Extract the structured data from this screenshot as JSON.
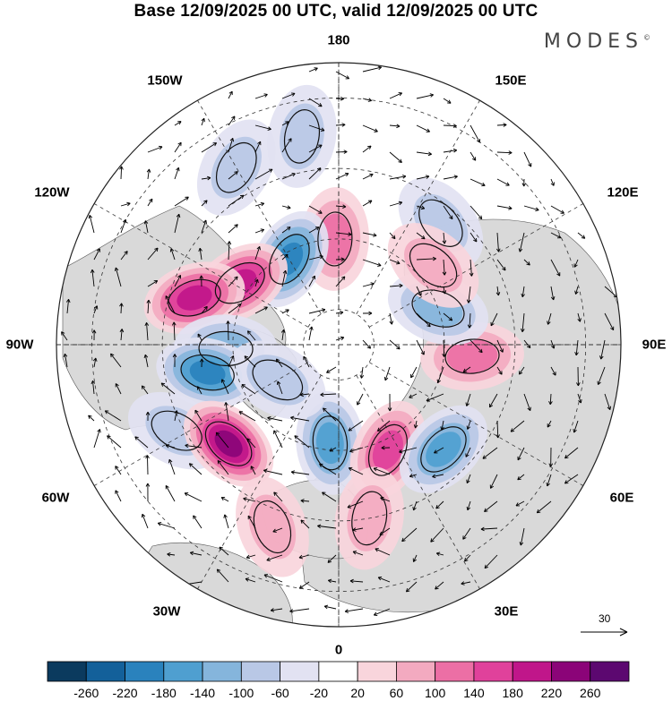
{
  "title": "Base 12/09/2025 00 UTC, valid 12/09/2025 00 UTC",
  "logo": "MODES",
  "logo_mark": "©",
  "longitude_labels": {
    "lon_180": "180",
    "lon_150W": "150W",
    "lon_150E": "150E",
    "lon_120W": "120W",
    "lon_120E": "120E",
    "lon_90W": "90W",
    "lon_90E": "90E",
    "lon_60W": "60W",
    "lon_60E": "60E",
    "lon_30W": "30W",
    "lon_30E": "30E",
    "lon_0": "0"
  },
  "vector_scale": {
    "label": "30"
  },
  "colorbar": {
    "ticks": [
      "-260",
      "-220",
      "-180",
      "-140",
      "-100",
      "-60",
      "-20",
      "20",
      "60",
      "100",
      "140",
      "180",
      "220",
      "260"
    ],
    "colors": [
      "#0b3a5e",
      "#13609a",
      "#2a82bd",
      "#4f9fd0",
      "#85b5dc",
      "#b9c8e6",
      "#e2e2f2",
      "#ffffff",
      "#f9d5dc",
      "#f3aac0",
      "#ec6fa5",
      "#e0419b",
      "#c0168a",
      "#8b0478",
      "#5c0870"
    ]
  },
  "anomalies": [
    {
      "lat": 60,
      "lon": -178,
      "value": 130
    },
    {
      "lat": 62,
      "lon": -150,
      "value": -210
    },
    {
      "lat": 57,
      "lon": -122,
      "value": 200
    },
    {
      "lat": 47,
      "lon": -108,
      "value": 200
    },
    {
      "lat": 58,
      "lon": -88,
      "value": -120
    },
    {
      "lat": 52,
      "lon": -78,
      "value": -200
    },
    {
      "lat": 38,
      "lon": -62,
      "value": -90
    },
    {
      "lat": 48,
      "lon": -48,
      "value": 230
    },
    {
      "lat": 62,
      "lon": -5,
      "value": -160
    },
    {
      "lat": 57,
      "lon": 25,
      "value": 150
    },
    {
      "lat": 48,
      "lon": 45,
      "value": -170
    },
    {
      "lat": 52,
      "lon": 85,
      "value": 110
    },
    {
      "lat": 60,
      "lon": 110,
      "value": -110
    },
    {
      "lat": 45,
      "lon": 140,
      "value": -60
    },
    {
      "lat": 55,
      "lon": 130,
      "value": 60
    },
    {
      "lat": 35,
      "lon": -20,
      "value": 60
    },
    {
      "lat": 40,
      "lon": 10,
      "value": 60
    },
    {
      "lat": 32,
      "lon": -150,
      "value": -60
    },
    {
      "lat": 70,
      "lon": -60,
      "value": -60
    },
    {
      "lat": 30,
      "lon": -170,
      "value": -60
    }
  ]
}
